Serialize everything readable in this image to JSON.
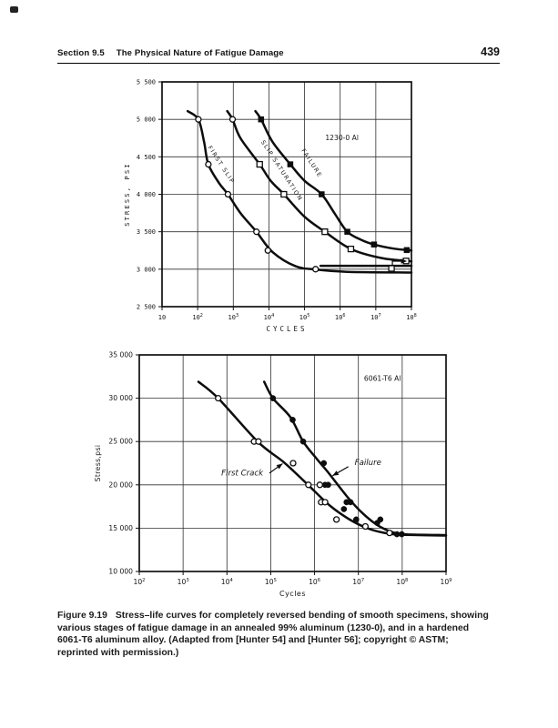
{
  "page": {
    "header": {
      "section": "Section 9.5",
      "title": "The Physical Nature of Fatigue Damage",
      "page_number": "439"
    },
    "caption": {
      "label": "Figure 9.19",
      "lines": [
        "Stress–life curves for completely reversed bending of smooth specimens, showing",
        "various stages of fatigue damage in an annealed 99% aluminum (1230-0), and in a hardened",
        "6061-T6 aluminum alloy. (Adapted from [Hunter 54] and [Hunter 56]; copyright © ASTM;",
        "reprinted with permission.)"
      ]
    }
  },
  "chart_data": [
    {
      "type": "line",
      "material_label": "1230-0 Al",
      "xlabel": "CYCLES",
      "ylabel": "STRESS, PSI",
      "x_scale": "log",
      "x_is_log10_exponent": true,
      "x_exponent_range": [
        1,
        8
      ],
      "xtick_exponents": [
        1,
        2,
        3,
        4,
        5,
        6,
        7,
        8
      ],
      "ylim": [
        2500,
        5500
      ],
      "ytick_values": [
        2500,
        3000,
        3500,
        4000,
        4500,
        5000,
        5500
      ],
      "ytick_labels": [
        "2 500",
        "3 000",
        "3 500",
        "4 000",
        "4 500",
        "5 000",
        "5 500"
      ],
      "grid": true,
      "series": [
        {
          "name": "First Slip",
          "marker": "open-circle",
          "curve": [
            [
              1.72,
              5110
            ],
            [
              2.02,
              5000
            ],
            [
              2.18,
              4700
            ],
            [
              2.3,
              4400
            ],
            [
              2.6,
              4150
            ],
            [
              2.85,
              4000
            ],
            [
              3.2,
              3750
            ],
            [
              3.65,
              3500
            ],
            [
              4.1,
              3230
            ],
            [
              4.75,
              3040
            ],
            [
              5.35,
              2995
            ],
            [
              6.2,
              2965
            ],
            [
              8.0,
              2955
            ]
          ],
          "points": [
            [
              2.02,
              5000
            ],
            [
              2.3,
              4400
            ],
            [
              2.85,
              4000
            ],
            [
              3.65,
              3500
            ],
            [
              3.97,
              3250
            ],
            [
              5.31,
              3000
            ]
          ]
        },
        {
          "name": "Slip Saturation",
          "marker": "open-square",
          "curve": [
            [
              2.83,
              5110
            ],
            [
              2.98,
              5000
            ],
            [
              3.2,
              4750
            ],
            [
              3.74,
              4400
            ],
            [
              4.05,
              4180
            ],
            [
              4.42,
              4000
            ],
            [
              5.0,
              3700
            ],
            [
              5.57,
              3500
            ],
            [
              6.3,
              3270
            ],
            [
              7.15,
              3150
            ],
            [
              8.0,
              3105
            ]
          ],
          "points": [
            {
              "x": 2.98,
              "y": 5000,
              "marker": "open-circle"
            },
            [
              3.74,
              4400
            ],
            [
              4.42,
              4000
            ],
            [
              5.57,
              3500
            ],
            [
              6.3,
              3270
            ],
            [
              7.85,
              3110
            ]
          ]
        },
        {
          "name": "Failure",
          "marker": "filled-square",
          "curve": [
            [
              3.62,
              5110
            ],
            [
              3.78,
              5000
            ],
            [
              4.1,
              4700
            ],
            [
              4.6,
              4400
            ],
            [
              5.0,
              4180
            ],
            [
              5.48,
              4000
            ],
            [
              5.85,
              3740
            ],
            [
              6.2,
              3500
            ],
            [
              6.6,
              3390
            ],
            [
              6.95,
              3330
            ],
            [
              7.5,
              3275
            ],
            [
              8.0,
              3250
            ]
          ],
          "points": [
            [
              3.78,
              5000
            ],
            [
              4.6,
              4400
            ],
            [
              5.48,
              4000
            ],
            [
              6.2,
              3500
            ],
            [
              6.95,
              3330
            ],
            [
              7.87,
              3255
            ]
          ]
        }
      ],
      "extra_lines": [
        {
          "y": 3045,
          "x_from": 5.45,
          "x_to": 8.0
        }
      ],
      "runout_points": [
        {
          "x": 7.44,
          "y": 3010,
          "marker": "open-square"
        }
      ],
      "curve_labels": [
        {
          "text": "FIRST SLIP",
          "x": 2.62,
          "y": 4380,
          "angle": 57
        },
        {
          "text": "SLIP SATURATION",
          "x": 4.32,
          "y": 4300,
          "angle": 57
        },
        {
          "text": "FAILURE",
          "x": 5.16,
          "y": 4400,
          "angle": 57
        }
      ],
      "annotations": [
        {
          "text": "1230-0 Al",
          "x": 6.05,
          "y": 4720
        }
      ]
    },
    {
      "type": "line",
      "material_label": "6061-T6 Al",
      "xlabel": "Cycles",
      "ylabel": "Stress,psi",
      "x_scale": "log",
      "x_is_log10_exponent": true,
      "x_exponent_range": [
        2,
        9
      ],
      "xtick_exponents": [
        2,
        3,
        4,
        5,
        6,
        7,
        8,
        9
      ],
      "ylim": [
        10000,
        35000
      ],
      "ytick_values": [
        10000,
        15000,
        20000,
        25000,
        30000,
        35000
      ],
      "ytick_labels": [
        "10 000",
        "15 000",
        "20 000",
        "25 000",
        "30 000",
        "35 000"
      ],
      "grid": true,
      "series": [
        {
          "name": "First Crack",
          "marker": "open-circle",
          "curve": [
            [
              3.35,
              31900
            ],
            [
              3.8,
              30000
            ],
            [
              4.7,
              25000
            ],
            [
              5.3,
              22600
            ],
            [
              5.85,
              20000
            ],
            [
              6.35,
              17600
            ],
            [
              6.8,
              16000
            ],
            [
              7.2,
              15000
            ],
            [
              7.55,
              14500
            ],
            [
              7.95,
              14250
            ],
            [
              9.0,
              14150
            ]
          ],
          "points": [
            [
              3.8,
              30000
            ],
            [
              4.62,
              25000
            ],
            [
              4.72,
              25000
            ],
            [
              5.51,
              22500
            ],
            [
              5.86,
              20000
            ],
            [
              6.12,
              20000
            ],
            [
              6.15,
              18000
            ],
            [
              6.24,
              18000
            ],
            [
              6.5,
              16000
            ],
            [
              7.16,
              15200
            ],
            [
              7.71,
              14450
            ]
          ]
        },
        {
          "name": "Failure",
          "marker": "filled-circle",
          "curve": [
            [
              4.85,
              31900
            ],
            [
              5.05,
              30000
            ],
            [
              5.45,
              27800
            ],
            [
              5.74,
              25000
            ],
            [
              6.05,
              23000
            ],
            [
              6.3,
              21500
            ],
            [
              6.75,
              18600
            ],
            [
              7.1,
              16700
            ],
            [
              7.45,
              15300
            ],
            [
              7.8,
              14500
            ],
            [
              8.1,
              14280
            ],
            [
              9.0,
              14200
            ]
          ],
          "points": [
            [
              5.05,
              30000
            ],
            [
              5.5,
              27500
            ],
            [
              5.74,
              25000
            ],
            [
              6.21,
              22500
            ],
            [
              6.24,
              20000
            ],
            [
              6.31,
              20000
            ],
            [
              6.67,
              17200
            ],
            [
              6.73,
              18000
            ],
            [
              6.82,
              18000
            ],
            [
              6.95,
              16000
            ],
            [
              7.43,
              15600
            ],
            [
              7.5,
              16000
            ],
            [
              7.88,
              14300
            ],
            [
              7.99,
              14300
            ]
          ]
        }
      ],
      "extra_lines": [],
      "runout_points": [],
      "curve_labels": [],
      "annotations": [
        {
          "text": "6061-T6 Al",
          "x": 7.55,
          "y": 32000
        },
        {
          "text": "First Crack",
          "x": 4.35,
          "y": 21100,
          "style": "italic",
          "arrow": {
            "from": [
              4.97,
              21350
            ],
            "to": [
              5.27,
              22450
            ]
          }
        },
        {
          "text": "Failure",
          "x": 7.22,
          "y": 22300,
          "style": "italic",
          "arrow": {
            "from": [
              6.77,
              22100
            ],
            "to": [
              6.41,
              21050
            ]
          }
        }
      ]
    }
  ]
}
